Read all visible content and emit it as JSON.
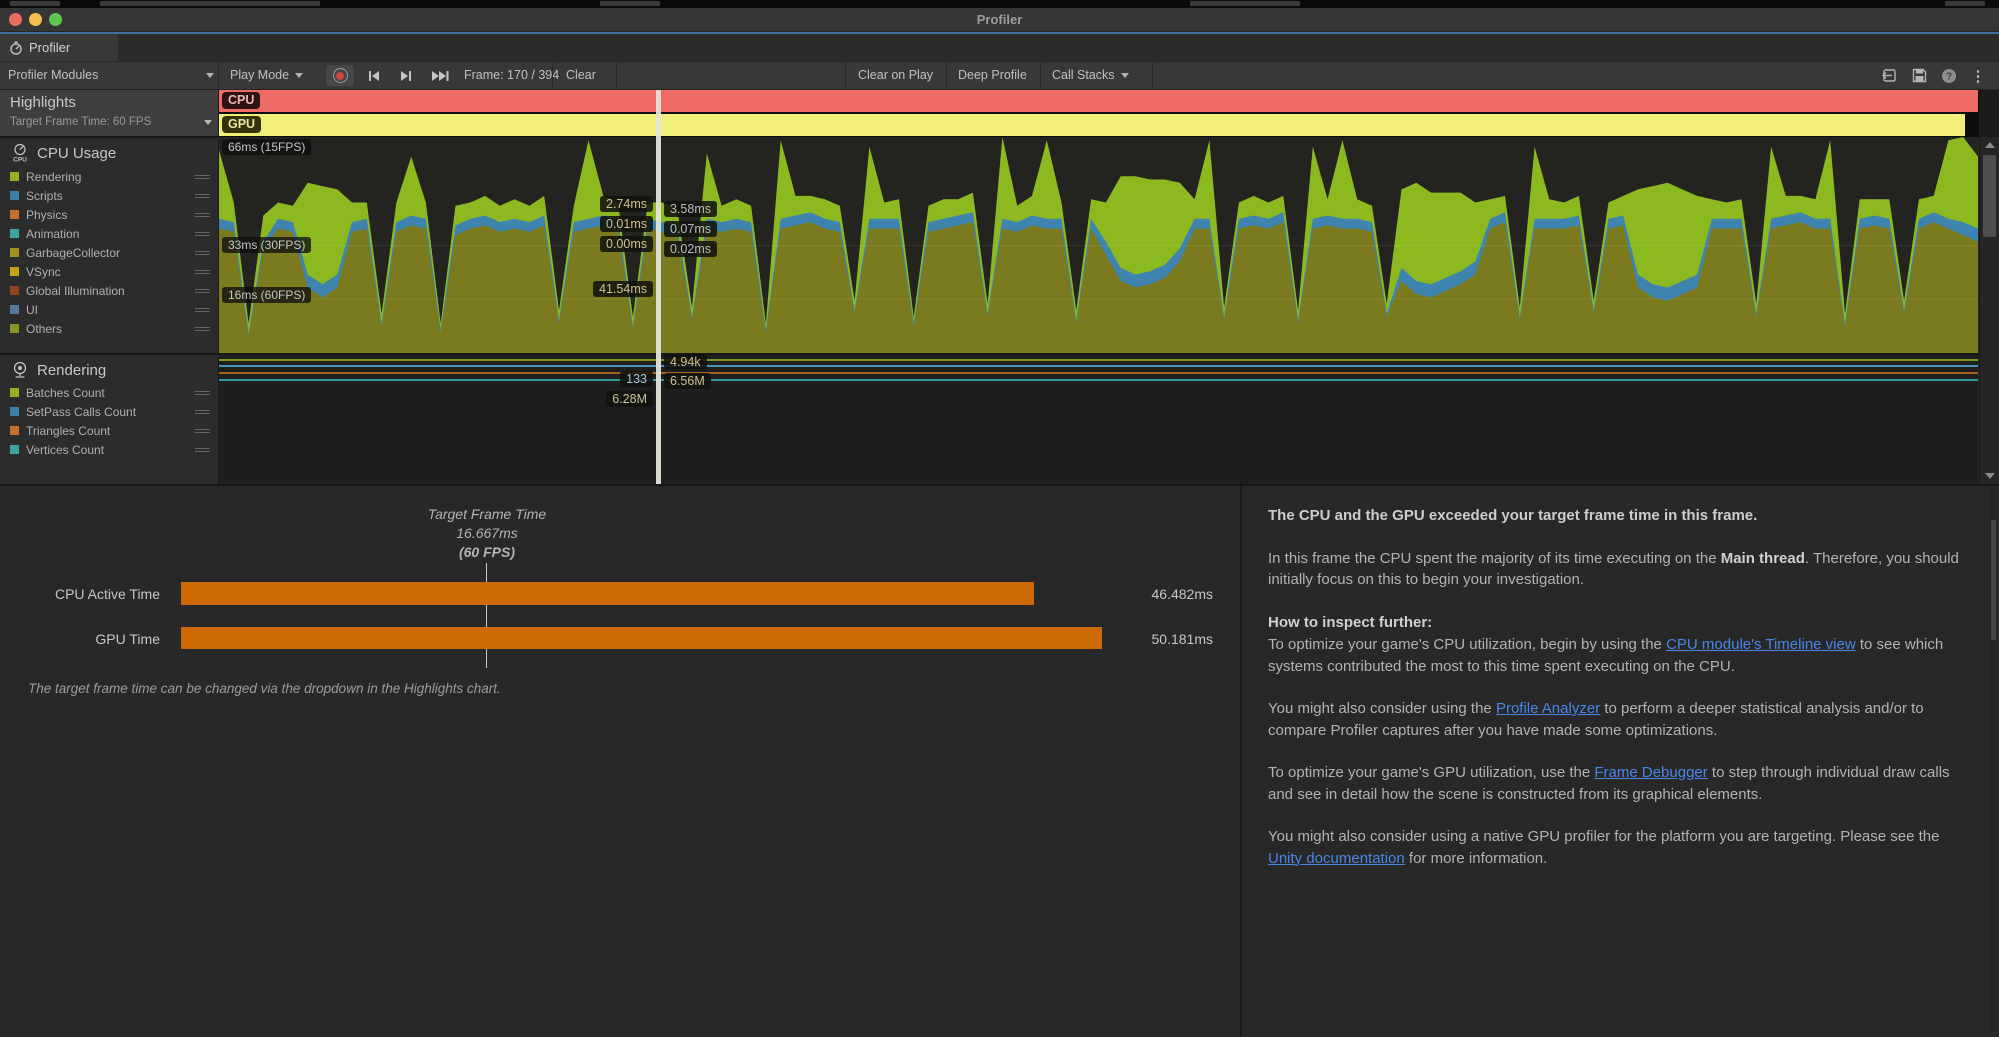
{
  "window": {
    "title": "Profiler"
  },
  "tab": {
    "label": "Profiler"
  },
  "toolbar": {
    "profiler_modules": "Profiler Modules",
    "play_mode": "Play Mode",
    "frame_counter": "Frame: 170 / 394",
    "clear": "Clear",
    "clear_on_play": "Clear on Play",
    "deep_profile": "Deep Profile",
    "call_stacks": "Call Stacks"
  },
  "sidebar": {
    "highlights": {
      "title": "Highlights",
      "target_dropdown": "Target Frame Time: 60 FPS"
    },
    "cpu_module": {
      "title": "CPU Usage",
      "items": [
        {
          "label": "Rendering",
          "color": "#93b021"
        },
        {
          "label": "Scripts",
          "color": "#3e7fa8"
        },
        {
          "label": "Physics",
          "color": "#c4702a"
        },
        {
          "label": "Animation",
          "color": "#3aa5a0"
        },
        {
          "label": "GarbageCollector",
          "color": "#9f941f"
        },
        {
          "label": "VSync",
          "color": "#c7a416"
        },
        {
          "label": "Global Illumination",
          "color": "#93411f"
        },
        {
          "label": "UI",
          "color": "#55779c"
        },
        {
          "label": "Others",
          "color": "#8b9326"
        }
      ]
    },
    "rendering_module": {
      "title": "Rendering",
      "items": [
        {
          "label": "Batches Count",
          "color": "#93b021"
        },
        {
          "label": "SetPass Calls Count",
          "color": "#3e7fa8"
        },
        {
          "label": "Triangles Count",
          "color": "#c4702a"
        },
        {
          "label": "Vertices Count",
          "color": "#3aa5a0"
        }
      ]
    }
  },
  "timeline": {
    "cpu_chip": "CPU",
    "gpu_chip": "GPU",
    "axis": {
      "top": "66ms (15FPS)",
      "mid": "33ms (30FPS)",
      "low": "16ms (60FPS)"
    },
    "chips_left": [
      "2.74ms",
      "0.01ms",
      "0.00ms"
    ],
    "chips_right": [
      "3.58ms",
      "0.07ms",
      "0.02ms"
    ],
    "vsync_chip": "41.54ms",
    "render_chips_left": [
      "133",
      "6.28M"
    ],
    "render_chips_right": [
      "4.94k",
      "6.56M"
    ]
  },
  "details": {
    "target_title": "Target Frame Time",
    "target_ms": "16.667ms",
    "target_fps": "(60 FPS)",
    "rows": [
      {
        "label": "CPU Active Time",
        "value": "46.482ms",
        "ms": 46.482
      },
      {
        "label": "GPU Time",
        "value": "50.181ms",
        "ms": 50.181
      }
    ],
    "note": "The target frame time can be changed via the dropdown in the Highlights chart."
  },
  "advice": {
    "heading": "The CPU and the GPU exceeded your target frame time in this frame.",
    "link_color": "#4a86e8",
    "paragraphs": [
      [
        {
          "t": "In this frame the CPU spent the majority of its time executing on the "
        },
        {
          "t": "Main thread",
          "s": "b"
        },
        {
          "t": ". Therefore, you should initially focus on this to begin your investigation."
        }
      ],
      [
        {
          "t": "How to inspect further:",
          "s": "b"
        }
      ],
      [
        {
          "t": "To optimize your game's CPU utilization, begin by using the "
        },
        {
          "t": "CPU module's Timeline view",
          "s": "l"
        },
        {
          "t": " to see which systems contributed the most to this time spent executing on the CPU."
        }
      ],
      [
        {
          "t": "You might also consider using the "
        },
        {
          "t": "Profile Analyzer",
          "s": "l"
        },
        {
          "t": " to perform a deeper statistical analysis and/or to compare Profiler captures after you have made some optimizations."
        }
      ],
      [
        {
          "t": "To optimize your game's GPU utilization, use the "
        },
        {
          "t": "Frame Debugger",
          "s": "l"
        },
        {
          "t": " to step through individual draw calls and see in detail how the scene is constructed from its graphical elements."
        }
      ],
      [
        {
          "t": "You might also consider using a native GPU profiler for the platform you are targeting. Please see the "
        },
        {
          "t": "Unity documentation",
          "s": "l"
        },
        {
          "t": " for more information."
        }
      ]
    ]
  },
  "chart_data": [
    {
      "id": "frame-timeline-highlights",
      "type": "bar",
      "title": "Highlights (Target Frame Time 60 FPS)",
      "rows": [
        {
          "label": "CPU",
          "color": "#ee6b66",
          "chip_bg": "#2f1213",
          "chip_fg": "#f0b9b4",
          "state": "exceeded target frame time"
        },
        {
          "label": "GPU",
          "color": "#f1ee7a",
          "chip_bg": "#35320c",
          "chip_fg": "#ece7a0",
          "state": "exceeded target frame time"
        }
      ]
    },
    {
      "id": "cpu-usage-timeline",
      "type": "area",
      "stacked": true,
      "ylabel": "ms",
      "ylim": [
        0,
        66
      ],
      "grid": true,
      "axis_markers": [
        "66ms (15FPS)",
        "33ms (30FPS)",
        "16ms (60FPS)"
      ],
      "selected_frame": {
        "frame": 170,
        "labels_left": [
          "2.74ms",
          "0.01ms",
          "0.00ms"
        ],
        "labels_right": [
          "3.58ms",
          "0.07ms",
          "0.02ms"
        ],
        "vsync_label": "41.54ms"
      },
      "series": [
        {
          "name": "VSync",
          "color": "#7b7a1f",
          "values": [
            38,
            37,
            5,
            32,
            38,
            37,
            20,
            17,
            20,
            37,
            38,
            8,
            37,
            39,
            38,
            6,
            36,
            38,
            39,
            37,
            38,
            37,
            39,
            9,
            37,
            38,
            39,
            38,
            7,
            38,
            37,
            36,
            10,
            38,
            37,
            38,
            37,
            6,
            38,
            39,
            40,
            38,
            37,
            12,
            38,
            38,
            38,
            8,
            37,
            38,
            39,
            40,
            11,
            38,
            37,
            39,
            38,
            38,
            9,
            38,
            30,
            22,
            20,
            21,
            23,
            28,
            38,
            38,
            10,
            38,
            39,
            38,
            40,
            9,
            38,
            39,
            38,
            38,
            37,
            11,
            22,
            18,
            17,
            19,
            21,
            24,
            38,
            40,
            10,
            38,
            38,
            38,
            39,
            12,
            38,
            39,
            20,
            17,
            16,
            18,
            20,
            38,
            38,
            38,
            11,
            38,
            39,
            40,
            38,
            38,
            8,
            38,
            39,
            38,
            12,
            38,
            40,
            38,
            36,
            34
          ]
        },
        {
          "name": "Scripts",
          "color": "#3f84ae",
          "values": [
            3,
            3,
            1,
            2,
            3,
            3,
            4,
            4,
            4,
            3,
            3,
            1,
            3,
            3,
            3,
            1,
            3,
            3,
            3,
            3,
            3,
            3,
            3,
            1,
            3,
            3,
            3,
            3,
            1,
            3,
            3,
            3,
            1,
            3,
            3,
            3,
            3,
            1,
            3,
            3,
            3,
            3,
            3,
            1,
            3,
            3,
            3,
            1,
            3,
            3,
            3,
            3,
            1,
            3,
            3,
            3,
            3,
            3,
            1,
            3,
            4,
            4,
            4,
            4,
            4,
            4,
            3,
            3,
            1,
            3,
            3,
            3,
            3,
            1,
            3,
            3,
            3,
            3,
            3,
            1,
            4,
            4,
            4,
            4,
            4,
            4,
            3,
            3,
            1,
            3,
            3,
            3,
            3,
            1,
            3,
            3,
            4,
            4,
            4,
            4,
            4,
            3,
            3,
            3,
            1,
            3,
            3,
            3,
            3,
            3,
            1,
            3,
            3,
            3,
            1,
            3,
            3,
            3,
            4,
            4
          ]
        },
        {
          "name": "Rendering",
          "color": "#8cb920",
          "values": [
            21,
            6,
            3,
            8,
            5,
            5,
            28,
            30,
            26,
            6,
            5,
            3,
            6,
            18,
            5,
            2,
            6,
            5,
            6,
            5,
            6,
            5,
            6,
            3,
            5,
            24,
            6,
            5,
            3,
            5,
            6,
            5,
            3,
            20,
            5,
            6,
            5,
            2,
            24,
            6,
            5,
            6,
            5,
            3,
            22,
            5,
            6,
            2,
            5,
            6,
            5,
            6,
            3,
            25,
            5,
            6,
            24,
            5,
            3,
            6,
            12,
            28,
            30,
            28,
            26,
            20,
            6,
            24,
            3,
            5,
            6,
            5,
            5,
            3,
            22,
            5,
            24,
            6,
            5,
            3,
            24,
            30,
            28,
            26,
            24,
            18,
            6,
            5,
            3,
            22,
            6,
            5,
            6,
            3,
            5,
            6,
            26,
            30,
            32,
            28,
            24,
            6,
            5,
            6,
            3,
            22,
            6,
            5,
            6,
            24,
            3,
            6,
            5,
            6,
            3,
            6,
            5,
            24,
            26,
            22
          ]
        }
      ]
    },
    {
      "id": "rendering-counters",
      "type": "line",
      "series": [
        {
          "name": "Batches Count",
          "color": "#7f941f",
          "value": "4.94k"
        },
        {
          "name": "SetPass Calls Count",
          "color": "#4795b2",
          "value": "133"
        },
        {
          "name": "Triangles Count",
          "color": "#a8641d",
          "value": "6.56M"
        },
        {
          "name": "Vertices Count",
          "color": "#38969c",
          "value": "6.28M"
        }
      ]
    },
    {
      "id": "frame-time-comparison",
      "type": "bar",
      "categories": [
        "CPU Active Time",
        "GPU Time"
      ],
      "values": [
        46.482,
        50.181
      ],
      "unit": "ms",
      "bar_color": "#ce6a03",
      "target": {
        "label": "Target Frame Time",
        "ms": 16.667,
        "fps_label": "(60 FPS)"
      }
    }
  ]
}
